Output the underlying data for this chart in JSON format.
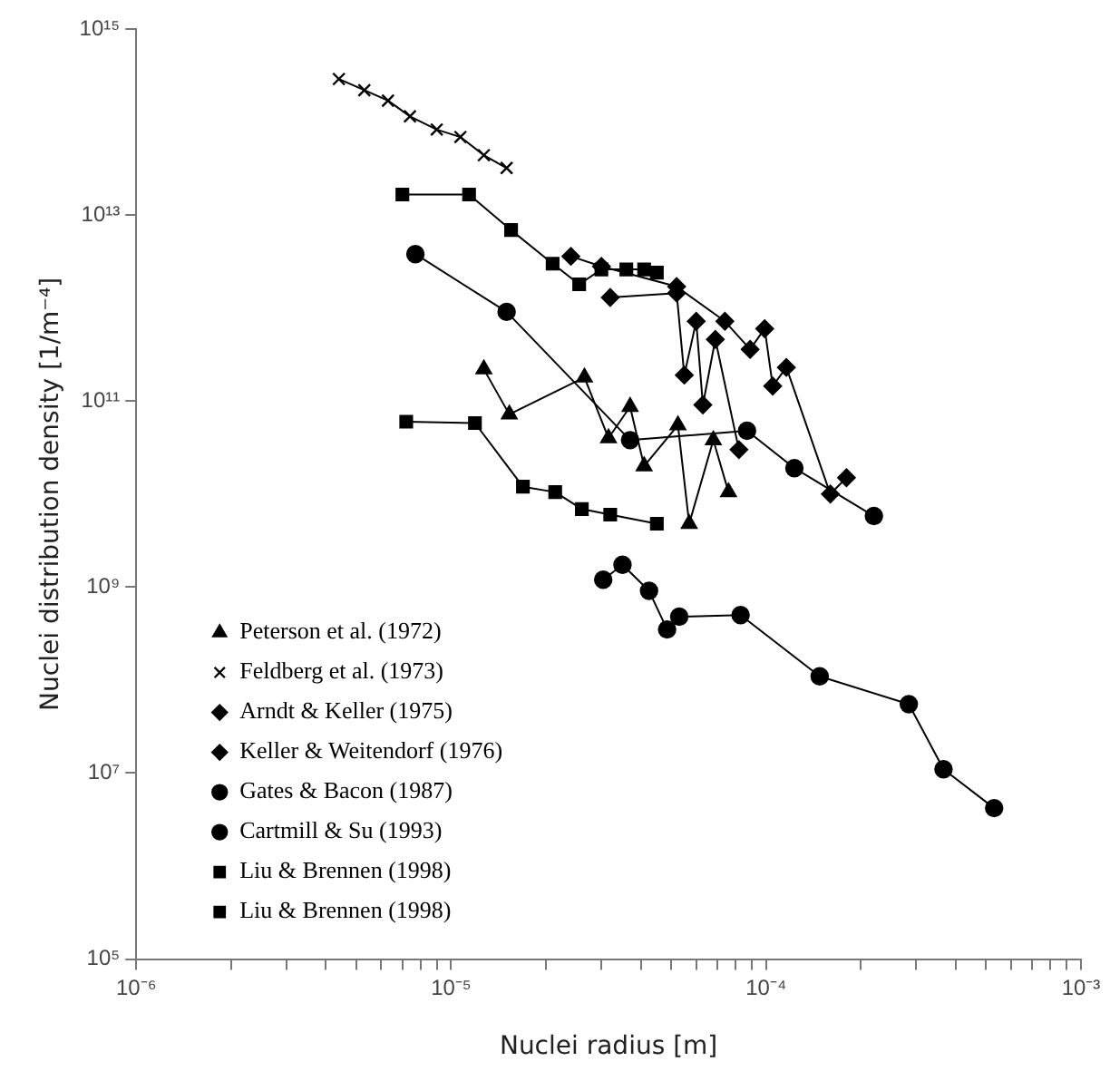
{
  "chart_data": {
    "type": "line",
    "xlabel": "Nuclei radius [m]",
    "ylabel": "Nuclei distribution density [1/m⁻⁴]",
    "log": "xy",
    "grid": false,
    "legend": "bottom left",
    "xlim": [
      1e-06,
      0.001
    ],
    "ylim": [
      100000.0,
      1000000000000000.0
    ],
    "xticks": [
      {
        "value": 1e-06,
        "label": "10⁻⁶"
      },
      {
        "value": 2e-06,
        "label": null
      },
      {
        "value": 3e-06,
        "label": null
      },
      {
        "value": 4e-06,
        "label": null
      },
      {
        "value": 5e-06,
        "label": null
      },
      {
        "value": 6e-06,
        "label": null
      },
      {
        "value": 7e-06,
        "label": null
      },
      {
        "value": 8e-06,
        "label": null
      },
      {
        "value": 9e-06,
        "label": null
      },
      {
        "value": 1e-05,
        "label": "10⁻⁵"
      },
      {
        "value": 2e-05,
        "label": null
      },
      {
        "value": 3e-05,
        "label": null
      },
      {
        "value": 4e-05,
        "label": null
      },
      {
        "value": 5e-05,
        "label": null
      },
      {
        "value": 6e-05,
        "label": null
      },
      {
        "value": 7e-05,
        "label": null
      },
      {
        "value": 8e-05,
        "label": null
      },
      {
        "value": 9e-05,
        "label": null
      },
      {
        "value": 0.0001,
        "label": "10⁻⁴"
      },
      {
        "value": 0.0002,
        "label": null
      },
      {
        "value": 0.0003,
        "label": null
      },
      {
        "value": 0.0004,
        "label": null
      },
      {
        "value": 0.0005,
        "label": null
      },
      {
        "value": 0.0006,
        "label": null
      },
      {
        "value": 0.0007,
        "label": null
      },
      {
        "value": 0.0008,
        "label": null
      },
      {
        "value": 0.0009,
        "label": null
      },
      {
        "value": 0.001,
        "label": "10⁻³"
      }
    ],
    "yticks": [
      {
        "value": 100000.0,
        "label": "10⁵"
      },
      {
        "value": 10000000.0,
        "label": "10⁷"
      },
      {
        "value": 1000000000.0,
        "label": "10⁹"
      },
      {
        "value": 100000000000.0,
        "label": "10¹¹"
      },
      {
        "value": 10000000000000.0,
        "label": "10¹³"
      },
      {
        "value": 1000000000000000.0,
        "label": "10¹⁵"
      }
    ],
    "series": [
      {
        "name": "Peterson et al. (1972)",
        "color": "#000000",
        "marker": "triangle",
        "x": [
          1.27e-05,
          1.53e-05,
          2.65e-05,
          3.16e-05,
          3.7e-05,
          4.1e-05,
          5.25e-05,
          5.7e-05,
          6.8e-05,
          7.6e-05
        ],
        "values": [
          220000000000.0,
          72000000000.0,
          180000000000.0,
          40000000000.0,
          87000000000.0,
          20000000000.0,
          55000000000.0,
          4800000000.0,
          38000000000.0,
          10500000000.0
        ]
      },
      {
        "name": "Feldberg et al. (1973)",
        "color": "#000000",
        "marker": "cross",
        "x": [
          4.4e-06,
          5.3e-06,
          6.3e-06,
          7.4e-06,
          9e-06,
          1.07e-05,
          1.27e-05,
          1.5e-05
        ],
        "values": [
          290000000000000.0,
          220000000000000.0,
          170000000000000.0,
          115000000000000.0,
          83000000000000.0,
          69000000000000.0,
          44000000000000.0,
          32000000000000.0
        ]
      },
      {
        "name": "Arndt & Keller (1975)",
        "color": "#000000",
        "marker": "diamond",
        "x": [
          3.2e-05,
          5.2e-05,
          5.5e-05,
          6e-05,
          6.3e-05,
          6.9e-05,
          8.2e-05
        ],
        "values": [
          1300000000000.0,
          1450000000000.0,
          190000000000.0,
          720000000000.0,
          91000000000.0,
          460000000000.0,
          30000000000.0
        ]
      },
      {
        "name": "Keller & Weitendorf (1976)",
        "color": "#000000",
        "marker": "diamond",
        "x": [
          2.4e-05,
          3e-05,
          5.2e-05,
          7.4e-05,
          8.9e-05,
          9.9e-05,
          0.000105,
          0.000116,
          0.00016,
          0.00018
        ],
        "values": [
          3600000000000.0,
          2800000000000.0,
          1700000000000.0,
          720000000000.0,
          360000000000.0,
          600000000000.0,
          145000000000.0,
          230000000000.0,
          10000000000.0,
          15000000000.0
        ]
      },
      {
        "name": "Gates & Bacon (1987)",
        "color": "#000000",
        "marker": "circle",
        "x": [
          7.7e-06,
          1.5e-05,
          3.7e-05,
          8.7e-05,
          0.000123,
          0.00022
        ],
        "values": [
          3800000000000.0,
          910000000000.0,
          38000000000.0,
          48000000000.0,
          19000000000.0,
          5800000000.0
        ]
      },
      {
        "name": "Cartmill & Su (1993)",
        "color": "#000000",
        "marker": "circle",
        "x": [
          3.04e-05,
          3.5e-05,
          4.25e-05,
          4.85e-05,
          5.3e-05,
          8.3e-05,
          0.000148,
          0.000284,
          0.000366,
          0.00053
        ],
        "values": [
          1200000000.0,
          1740000000.0,
          910000000.0,
          350000000.0,
          480000000.0,
          500000000.0,
          110000000.0,
          55000000.0,
          11000000.0,
          4200000.0
        ]
      },
      {
        "name": "Liu & Brennen (1998)",
        "color": "#000000",
        "marker": "square",
        "x": [
          7.2e-06,
          1.19e-05,
          1.69e-05,
          2.14e-05,
          2.6e-05,
          3.2e-05,
          4.5e-05
        ],
        "values": [
          60000000000.0,
          58000000000.0,
          12000000000.0,
          10500000000.0,
          6900000000.0,
          6000000000.0,
          4800000000.0
        ]
      },
      {
        "name": "Liu & Brennen (1998)",
        "color": "#000000",
        "marker": "square",
        "x": [
          7e-06,
          1.14e-05,
          1.55e-05,
          2.1e-05,
          2.55e-05,
          3e-05,
          3.6e-05,
          4.1e-05,
          4.5e-05
        ],
        "values": [
          16600000000000.0,
          16600000000000.0,
          6900000000000.0,
          3000000000000.0,
          1800000000000.0,
          2600000000000.0,
          2600000000000.0,
          2600000000000.0,
          2400000000000.0
        ]
      }
    ]
  }
}
